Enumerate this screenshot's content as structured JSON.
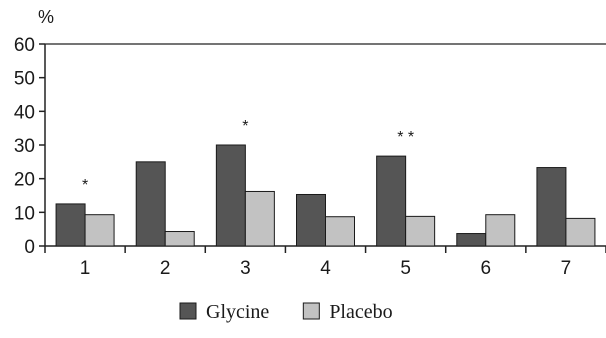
{
  "chart_data": {
    "type": "bar",
    "y_unit": "%",
    "ylim": [
      0,
      60
    ],
    "yticks": [
      0,
      10,
      20,
      30,
      40,
      50,
      60
    ],
    "categories": [
      "1",
      "2",
      "3",
      "4",
      "5",
      "6",
      "7"
    ],
    "series": [
      {
        "name": "Glycine",
        "color": "#555555",
        "values": [
          12.5,
          25,
          30,
          15.3,
          26.7,
          3.7,
          23.3
        ]
      },
      {
        "name": "Placebo",
        "color": "#c2c2c2",
        "values": [
          9.3,
          4.3,
          16.2,
          8.7,
          8.8,
          9.3,
          8.2
        ]
      }
    ],
    "annotations": [
      {
        "category": "1",
        "text": "*"
      },
      {
        "category": "3",
        "text": "*"
      },
      {
        "category": "5",
        "text": "**"
      }
    ],
    "legend_position": "bottom-center",
    "grid": false
  }
}
